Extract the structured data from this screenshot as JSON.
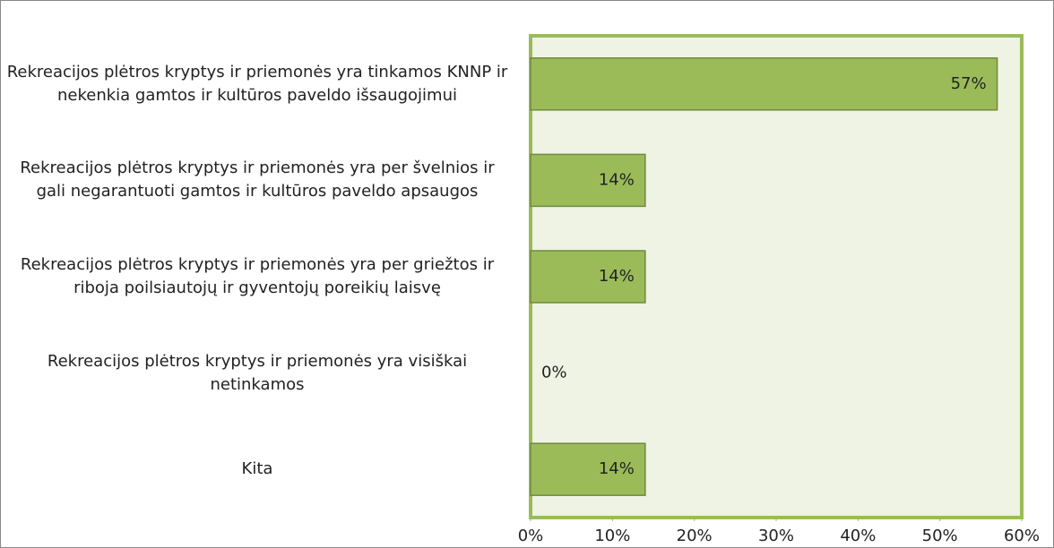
{
  "chart_data": {
    "type": "bar",
    "orientation": "horizontal",
    "categories": [
      "Rekreacijos plėtros kryptys ir priemonės yra tinkamos KNNP ir nekenkia gamtos ir kultūros paveldo išsaugojimui",
      "Rekreacijos plėtros kryptys ir priemonės yra per švelnios ir gali negarantuoti gamtos ir kultūros paveldo apsaugos",
      "Rekreacijos plėtros kryptys ir priemonės yra per griežtos ir riboja poilsiautojų ir gyventojų poreikių laisvę",
      "Rekreacijos plėtros kryptys ir priemonės yra visiškai netinkamos",
      "Kita"
    ],
    "values": [
      57,
      14,
      14,
      0,
      14
    ],
    "value_labels": [
      "57%",
      "14%",
      "14%",
      "0%",
      "14%"
    ],
    "color": "#9bbb59",
    "xlim": [
      0,
      60
    ],
    "xticks": [
      {
        "value": 0,
        "label": "0%"
      },
      {
        "value": 10,
        "label": "10%"
      },
      {
        "value": 20,
        "label": "20%"
      },
      {
        "value": 30,
        "label": "30%"
      },
      {
        "value": 40,
        "label": "40%"
      },
      {
        "value": 50,
        "label": "50%"
      },
      {
        "value": 60,
        "label": "60%"
      }
    ],
    "grid": false
  }
}
